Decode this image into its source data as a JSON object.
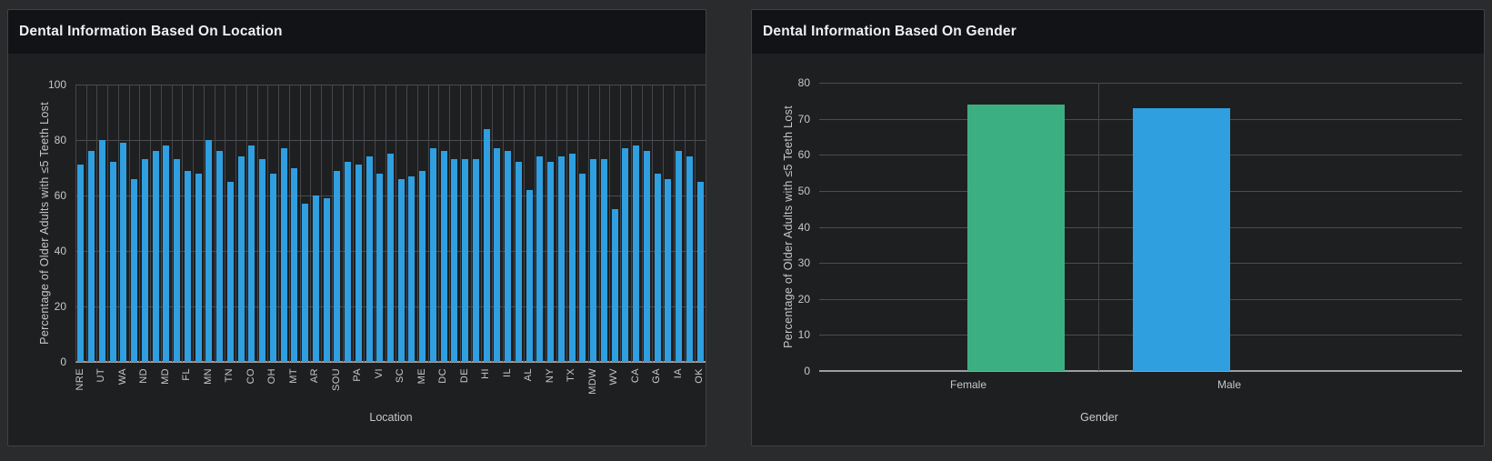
{
  "colors": {
    "page_bg": "#2a2b2d",
    "panel_bg": "#1e1f21",
    "panel_header_bg": "#121316",
    "panel_border": "#3f4145",
    "gridline": "#4a4c50",
    "axis_line": "#9b9da1",
    "tick_text": "#c6c7c9",
    "title_text": "#eef0f2",
    "bar_blue": "#2f9fe0",
    "bar_green": "#3caf82"
  },
  "chart_data": [
    {
      "type": "bar",
      "panel_title": "Dental Information Based On Location",
      "xlabel": "Location",
      "ylabel": "Percentage of Older Adults with ≤5 Teeth Lost",
      "ylim": [
        0,
        100
      ],
      "yticks": [
        0,
        20,
        40,
        60,
        80,
        100
      ],
      "grid": true,
      "bar_color": "#2f9fe0",
      "x_tick_label_every": 2,
      "x_tick_labels": [
        "NRE",
        "UT",
        "WA",
        "ND",
        "MD",
        "FL",
        "MN",
        "TN",
        "CO",
        "OH",
        "MT",
        "AR",
        "SOU",
        "PA",
        "VI",
        "SC",
        "ME",
        "DC",
        "DE",
        "HI",
        "IL",
        "AL",
        "NY",
        "TX",
        "MDW",
        "WV",
        "CA",
        "GA",
        "IA",
        "OK"
      ],
      "values": [
        71,
        76,
        80,
        72,
        79,
        66,
        73,
        76,
        78,
        73,
        69,
        68,
        80,
        76,
        65,
        74,
        78,
        73,
        68,
        77,
        70,
        57,
        60,
        59,
        69,
        72,
        71,
        74,
        68,
        75,
        66,
        67,
        69,
        77,
        76,
        73,
        73,
        73,
        84,
        77,
        76,
        72,
        62,
        74,
        72,
        74,
        75,
        68,
        73,
        73,
        55,
        77,
        78,
        76,
        68,
        66,
        76,
        74,
        65
      ]
    },
    {
      "type": "bar",
      "panel_title": "Dental Information Based On Gender",
      "xlabel": "Gender",
      "ylabel": "Percentage of Older Adults with ≤5 Teeth Lost",
      "ylim": [
        0,
        80
      ],
      "yticks": [
        0,
        10,
        20,
        30,
        40,
        50,
        60,
        70,
        80
      ],
      "grid": true,
      "categories": [
        "Female",
        "Male"
      ],
      "values": [
        74,
        73
      ],
      "bar_colors": [
        "#3caf82",
        "#2f9fe0"
      ]
    }
  ]
}
